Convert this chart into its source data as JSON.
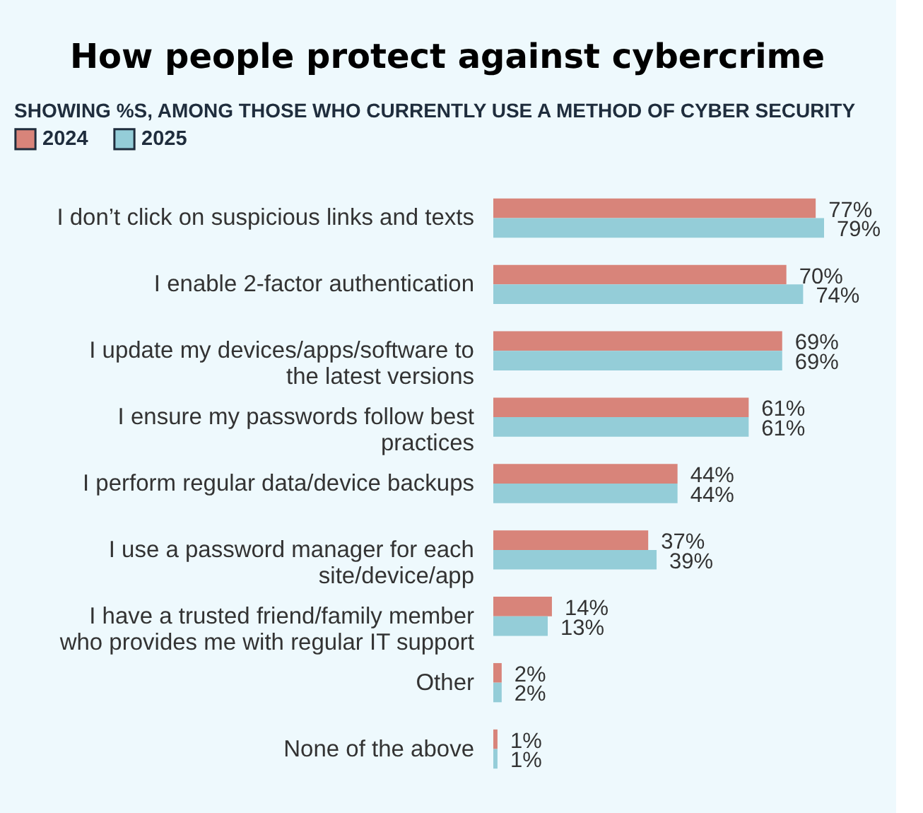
{
  "chart_data": {
    "type": "bar",
    "orientation": "horizontal",
    "title": "How people protect against cybercrime",
    "subtitle": "SHOWING %S, AMONG THOSE WHO CURRENTLY USE A METHOD OF CYBER SECURITY",
    "categories": [
      "I don’t click on suspicious links and texts",
      "I enable 2-factor authentication",
      "I update my devices/apps/software to\nthe latest versions",
      "I ensure my passwords follow best\npractices",
      "I perform regular data/device backups",
      "I use a password manager for each\nsite/device/app",
      "I have a trusted friend/family member\nwho provides me with regular IT support",
      "Other",
      "None of the above"
    ],
    "series": [
      {
        "name": "2024",
        "color": "#d8847a",
        "values": [
          77,
          70,
          69,
          61,
          44,
          37,
          14,
          2,
          1
        ],
        "value_labels": [
          "77%",
          "70%",
          "69%",
          "61%",
          "44%",
          "37%",
          "14%",
          "2%",
          "1%"
        ]
      },
      {
        "name": "2025",
        "color": "#94cdd8",
        "values": [
          79,
          74,
          69,
          61,
          44,
          39,
          13,
          2,
          1
        ],
        "value_labels": [
          "79%",
          "74%",
          "69%",
          "61%",
          "44%",
          "39%",
          "13%",
          "2%",
          "1%"
        ]
      }
    ],
    "tick_labels": "y",
    "legend": "top left"
  }
}
